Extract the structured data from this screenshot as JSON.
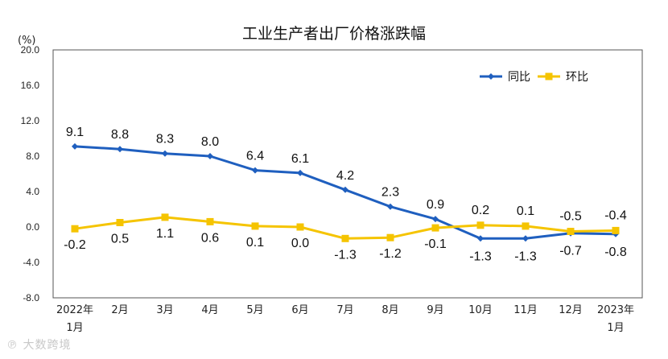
{
  "chart_data": {
    "type": "line",
    "title": "工业生产者出厂价格涨跌幅",
    "ylabel": "(%)",
    "ylim": [
      -8.0,
      20.0
    ],
    "yticks": [
      "20.0",
      "16.0",
      "12.0",
      "8.0",
      "4.0",
      "0.0",
      "-4.0",
      "-8.0"
    ],
    "ytick_values": [
      20,
      16,
      12,
      8,
      4,
      0,
      -4,
      -8
    ],
    "categories": [
      {
        "line1": "2022年",
        "line2": "1月"
      },
      {
        "line1": "2月",
        "line2": ""
      },
      {
        "line1": "3月",
        "line2": ""
      },
      {
        "line1": "4月",
        "line2": ""
      },
      {
        "line1": "5月",
        "line2": ""
      },
      {
        "line1": "6月",
        "line2": ""
      },
      {
        "line1": "7月",
        "line2": ""
      },
      {
        "line1": "8月",
        "line2": ""
      },
      {
        "line1": "9月",
        "line2": ""
      },
      {
        "line1": "10月",
        "line2": ""
      },
      {
        "line1": "11月",
        "line2": ""
      },
      {
        "line1": "12月",
        "line2": ""
      },
      {
        "line1": "2023年",
        "line2": "1月"
      }
    ],
    "legend_position": "top-right",
    "series": [
      {
        "name": "同比",
        "color": "#1f5fbf",
        "marker": "diamond",
        "values": [
          9.1,
          8.8,
          8.3,
          8.0,
          6.4,
          6.1,
          4.2,
          2.3,
          0.9,
          -1.3,
          -1.3,
          -0.7,
          -0.8
        ],
        "labels": [
          "9.1",
          "8.8",
          "8.3",
          "8.0",
          "6.4",
          "6.1",
          "4.2",
          "2.3",
          "0.9",
          "-1.3",
          "-1.3",
          "-0.7",
          "-0.8"
        ]
      },
      {
        "name": "环比",
        "color": "#f5c400",
        "marker": "square",
        "values": [
          -0.2,
          0.5,
          1.1,
          0.6,
          0.1,
          0.0,
          -1.3,
          -1.2,
          -0.1,
          0.2,
          0.1,
          -0.5,
          -0.4
        ],
        "labels": [
          "-0.2",
          "0.5",
          "1.1",
          "0.6",
          "0.1",
          "0.0",
          "-1.3",
          "-1.2",
          "-0.1",
          "0.2",
          "0.1",
          "-0.5",
          "-0.4"
        ]
      }
    ]
  },
  "watermark": "大数跨境"
}
